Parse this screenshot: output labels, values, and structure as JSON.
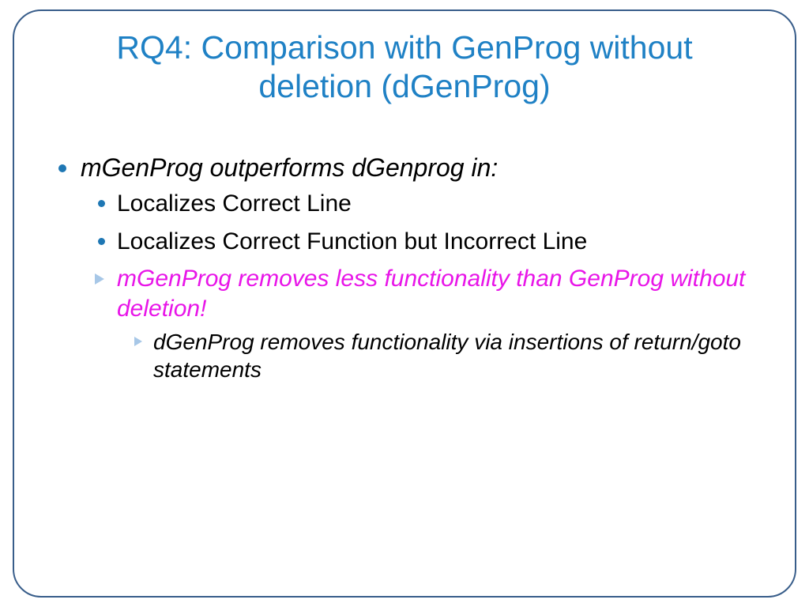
{
  "title": "RQ4: Comparison with GenProg without deletion (dGenProg)",
  "lvl1_text": "mGenProg outperforms dGenprog in:",
  "lvl2_a": "Localizes Correct Line",
  "lvl2_b": "Localizes Correct Function but Incorrect Line",
  "lvl2_c": "mGenProg removes less functionality than GenProg without deletion!",
  "lvl3_a": "dGenProg removes functionality via insertions of return/goto statements",
  "colors": {
    "title": "#1f81c5",
    "bullet": "#1e77b4",
    "arrow": "#a7c7e7",
    "highlight": "#e815e8",
    "border": "#385d8a",
    "background": "#ffffff",
    "text": "#000000"
  },
  "fonts": {
    "title_size": 41,
    "lvl1_size": 32,
    "lvl2_size": 30,
    "lvl3_size": 28
  },
  "border_radius": 36
}
